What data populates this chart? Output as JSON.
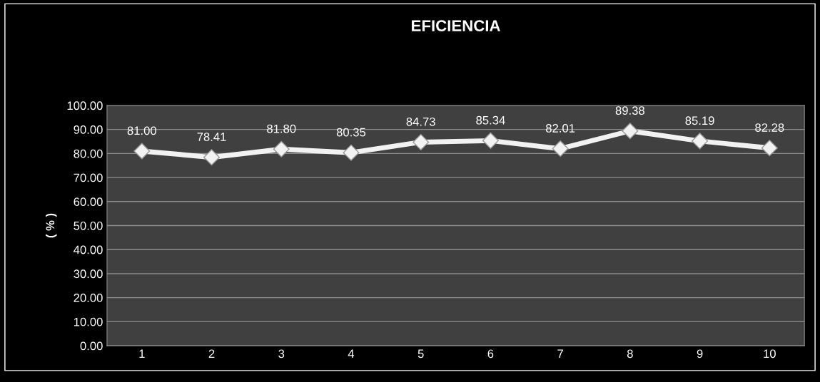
{
  "chart_data": {
    "type": "line",
    "title": "EFICIENCIA",
    "ylabel": "( % )",
    "categories": [
      "1",
      "2",
      "3",
      "4",
      "5",
      "6",
      "7",
      "8",
      "9",
      "10"
    ],
    "series": [
      {
        "color": "#f2f2f2",
        "values": [
          81.0,
          78.41,
          81.8,
          80.35,
          84.73,
          85.34,
          82.01,
          89.38,
          85.19,
          82.28
        ],
        "value_labels": [
          "81.00",
          "78.41",
          "81.80",
          "80.35",
          "84.73",
          "85.34",
          "82.01",
          "89.38",
          "85.19",
          "82.28"
        ]
      }
    ],
    "ylim": [
      0,
      100
    ],
    "yticks": [
      {
        "value": 0,
        "label": "0.00"
      },
      {
        "value": 10,
        "label": "10.00"
      },
      {
        "value": 20,
        "label": "20.00"
      },
      {
        "value": 30,
        "label": "30.00"
      },
      {
        "value": 40,
        "label": "40.00"
      },
      {
        "value": 50,
        "label": "50.00"
      },
      {
        "value": 60,
        "label": "60.00"
      },
      {
        "value": 70,
        "label": "70.00"
      },
      {
        "value": 80,
        "label": "80.00"
      },
      {
        "value": 90,
        "label": "90.00"
      },
      {
        "value": 100,
        "label": "100.00"
      }
    ],
    "grid": "y",
    "legend": false,
    "marker": "diamond",
    "line_style": "solid"
  }
}
